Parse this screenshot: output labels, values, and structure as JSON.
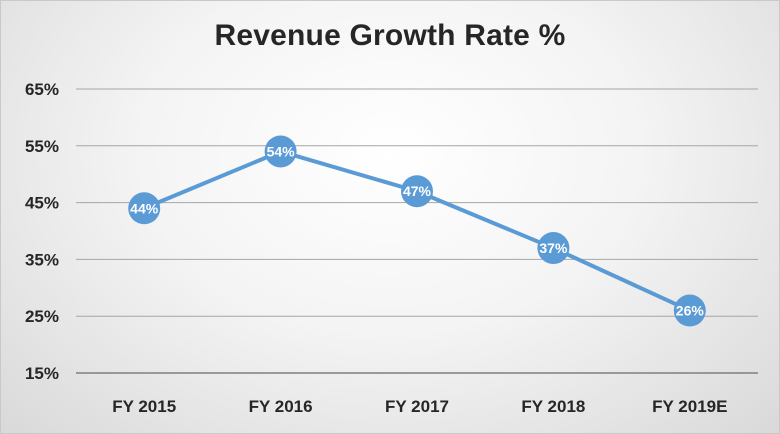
{
  "chart_data": {
    "type": "line",
    "title": "Revenue Growth Rate %",
    "xlabel": "",
    "ylabel": "",
    "categories": [
      "FY 2015",
      "FY 2016",
      "FY 2017",
      "FY 2018",
      "FY 2019E"
    ],
    "series": [
      {
        "values": [
          44,
          54,
          47,
          37,
          26
        ],
        "data_labels": [
          "44%",
          "54%",
          "47%",
          "37%",
          "26%"
        ]
      }
    ],
    "ylim": [
      15,
      65
    ],
    "yticks": [
      15,
      25,
      35,
      45,
      55,
      65
    ],
    "ytick_labels": [
      "15%",
      "25%",
      "35%",
      "45%",
      "55%",
      "65%"
    ],
    "grid": true,
    "legend": "none",
    "colors": {
      "line": "#5b9bd5",
      "gridline": "#a6a6a6",
      "text": "#262626",
      "label_text": "#ffffff"
    }
  }
}
